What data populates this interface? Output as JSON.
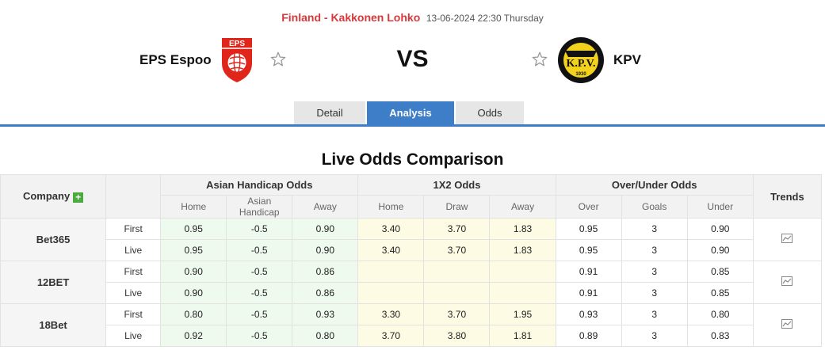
{
  "header": {
    "league": "Finland - Kakkonen Lohko",
    "datetime": "13-06-2024 22:30 Thursday"
  },
  "match": {
    "home": "EPS Espoo",
    "away": "KPV",
    "vs": "VS",
    "home_logo_text": "EPS",
    "away_logo_text": "K.P.V.",
    "away_logo_year": "1930"
  },
  "tabs": [
    {
      "label": "Detail",
      "active": false
    },
    {
      "label": "Analysis",
      "active": true
    },
    {
      "label": "Odds",
      "active": false
    }
  ],
  "section_title": "Live Odds Comparison",
  "table": {
    "company_header": "Company",
    "groups": [
      "Asian Handicap Odds",
      "1X2 Odds",
      "Over/Under Odds"
    ],
    "trends_header": "Trends",
    "subheaders": [
      "Home",
      "Asian Handicap",
      "Away",
      "Home",
      "Draw",
      "Away",
      "Over",
      "Goals",
      "Under"
    ],
    "companies": [
      {
        "name": "Bet365",
        "rows": [
          {
            "phase": "First",
            "ah": [
              "0.95",
              "-0.5",
              "0.90"
            ],
            "x12": [
              "3.40",
              "3.70",
              "1.83"
            ],
            "ou": [
              "0.95",
              "3",
              "0.90"
            ]
          },
          {
            "phase": "Live",
            "ah": [
              "0.95",
              "-0.5",
              "0.90"
            ],
            "x12": [
              "3.40",
              "3.70",
              "1.83"
            ],
            "ou": [
              "0.95",
              "3",
              "0.90"
            ]
          }
        ]
      },
      {
        "name": "12BET",
        "rows": [
          {
            "phase": "First",
            "ah": [
              "0.90",
              "-0.5",
              "0.86"
            ],
            "x12": [
              "",
              "",
              ""
            ],
            "ou": [
              "0.91",
              "3",
              "0.85"
            ]
          },
          {
            "phase": "Live",
            "ah": [
              "0.90",
              "-0.5",
              "0.86"
            ],
            "x12": [
              "",
              "",
              ""
            ],
            "ou": [
              "0.91",
              "3",
              "0.85"
            ]
          }
        ]
      },
      {
        "name": "18Bet",
        "rows": [
          {
            "phase": "First",
            "ah": [
              "0.80",
              "-0.5",
              "0.93"
            ],
            "x12": [
              "3.30",
              "3.70",
              "1.95"
            ],
            "ou": [
              "0.93",
              "3",
              "0.80"
            ]
          },
          {
            "phase": "Live",
            "ah": [
              "0.92",
              "-0.5",
              "0.80"
            ],
            "x12": [
              "3.70",
              "3.80",
              "1.81"
            ],
            "ou": [
              "0.89",
              "3",
              "0.83"
            ]
          }
        ]
      }
    ]
  }
}
